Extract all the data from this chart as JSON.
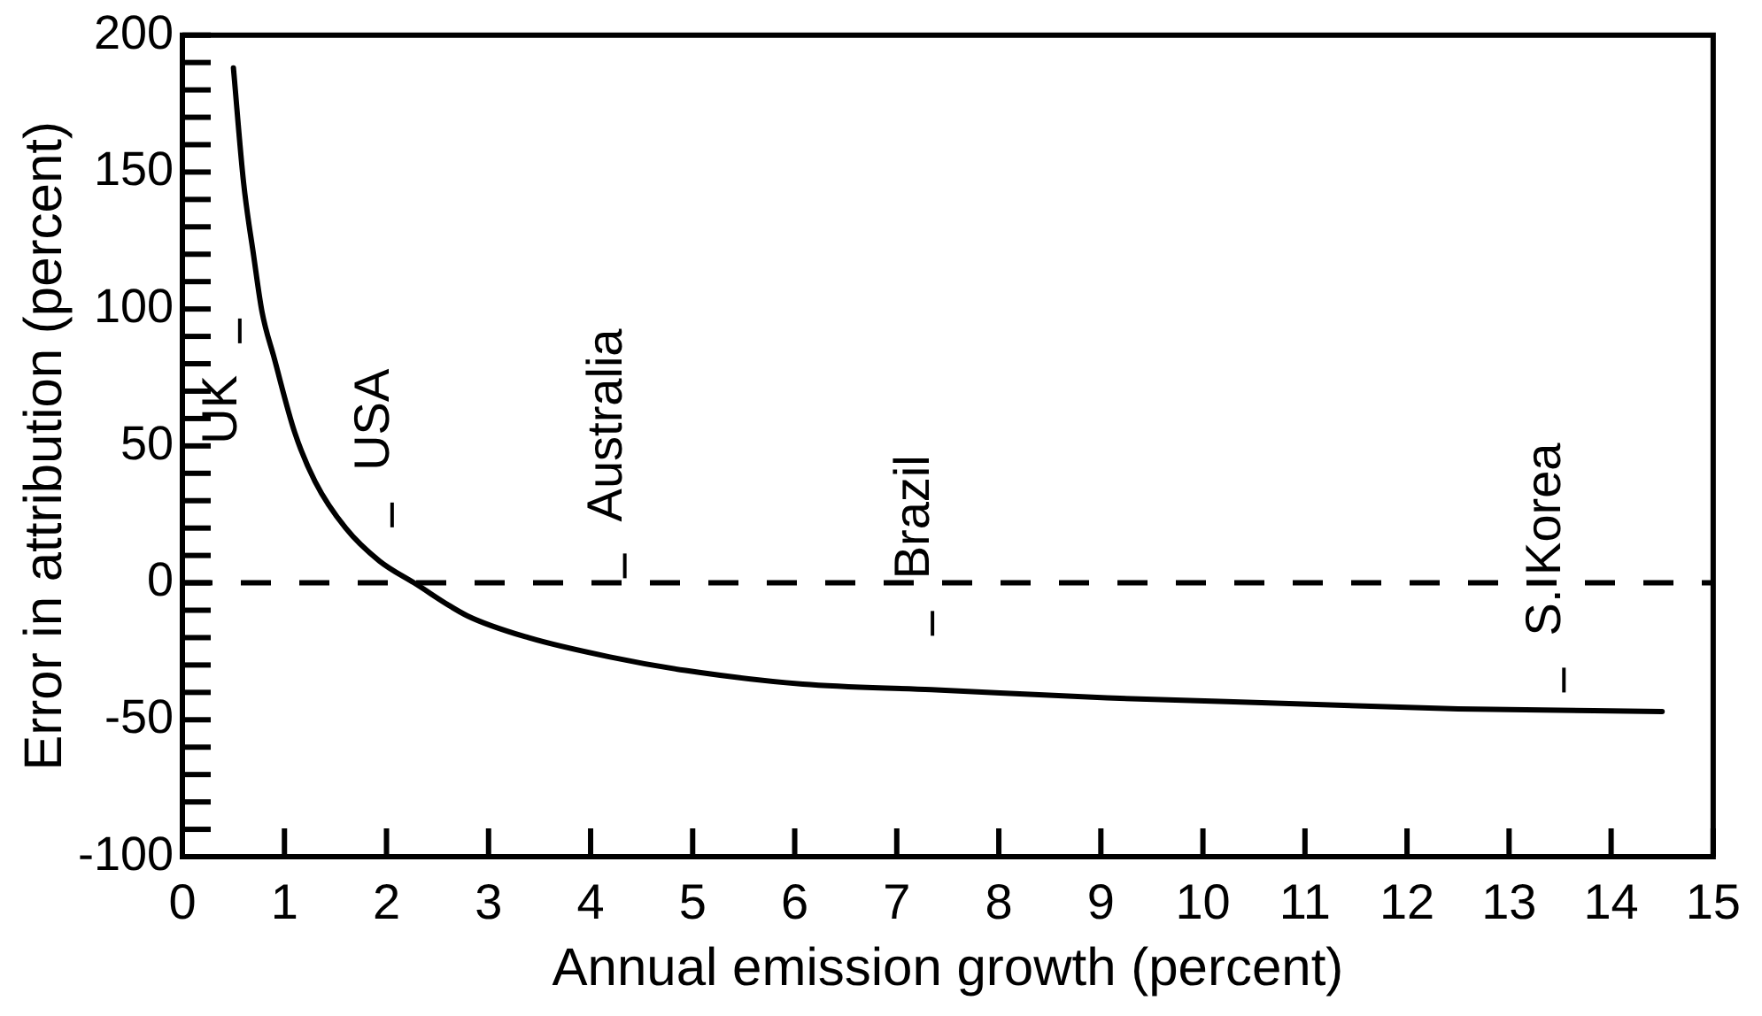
{
  "chart_data": {
    "type": "line",
    "xlabel": "Annual emission growth (percent)",
    "ylabel": "Error in attribution (percent)",
    "x": [
      0.5,
      0.6,
      0.7,
      0.78,
      0.9,
      1.1,
      1.3,
      1.6,
      1.93,
      2.27,
      2.79,
      3.39,
      4.18,
      4.93,
      6.08,
      7.34,
      9.06,
      10.78,
      12.5,
      14.5
    ],
    "values": [
      188,
      146,
      119,
      99,
      82,
      55,
      37,
      20,
      8,
      0,
      -12,
      -20,
      -27,
      -32,
      -37,
      -39,
      -42,
      -44,
      -46,
      -47
    ],
    "color": "#000000",
    "marker": "none",
    "xlim": [
      0,
      15
    ],
    "xticks": [
      0,
      1,
      2,
      3,
      4,
      5,
      6,
      7,
      8,
      9,
      10,
      11,
      12,
      13,
      14,
      15
    ],
    "ylim": [
      -100,
      200
    ],
    "yticks": [
      -100,
      {
        "value": -90,
        "label": null
      },
      {
        "value": -80,
        "label": null
      },
      {
        "value": -70,
        "label": null
      },
      {
        "value": -60,
        "label": null
      },
      -50,
      {
        "value": -40,
        "label": null
      },
      {
        "value": -30,
        "label": null
      },
      {
        "value": -20,
        "label": null
      },
      {
        "value": -10,
        "label": null
      },
      0,
      {
        "value": 10,
        "label": null
      },
      {
        "value": 20,
        "label": null
      },
      {
        "value": 30,
        "label": null
      },
      {
        "value": 40,
        "label": null
      },
      50,
      {
        "value": 60,
        "label": null
      },
      {
        "value": 70,
        "label": null
      },
      {
        "value": 80,
        "label": null
      },
      {
        "value": 90,
        "label": null
      },
      100,
      {
        "value": 110,
        "label": null
      },
      {
        "value": 120,
        "label": null
      },
      {
        "value": 130,
        "label": null
      },
      {
        "value": 140,
        "label": null
      },
      150,
      {
        "value": 160,
        "label": null
      },
      {
        "value": 170,
        "label": null
      },
      {
        "value": 180,
        "label": null
      },
      {
        "value": 190,
        "label": null
      },
      200
    ],
    "ref_lines": [
      {
        "axis": "y",
        "value": 0,
        "color": "#000000",
        "line_style": "dashed"
      }
    ],
    "annotations": [
      "UK",
      "USA",
      "Australia",
      "Brazil",
      "S. Korea"
    ]
  }
}
